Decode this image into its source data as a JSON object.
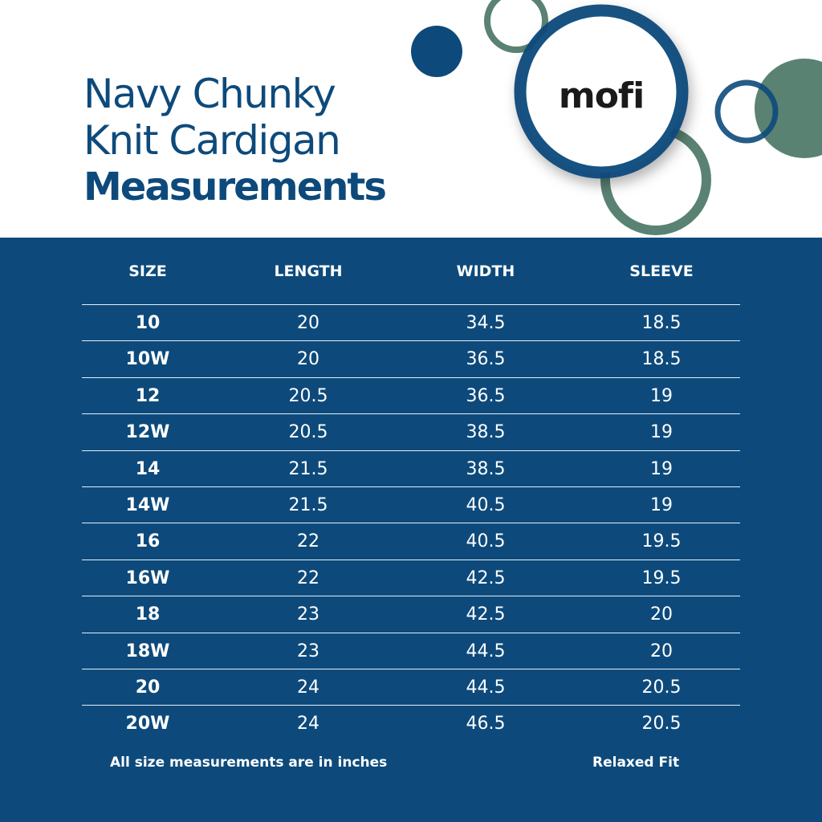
{
  "brand": {
    "logo_text": "mofi",
    "navy": "#0d4a7b",
    "green": "#5a8272"
  },
  "title": {
    "line1": "Navy Chunky",
    "line2": "Knit Cardigan",
    "line3": "Measurements"
  },
  "table": {
    "headers": [
      "SIZE",
      "LENGTH",
      "WIDTH",
      "SLEEVE"
    ],
    "rows": [
      [
        "10",
        "20",
        "34.5",
        "18.5"
      ],
      [
        "10W",
        "20",
        "36.5",
        "18.5"
      ],
      [
        "12",
        "20.5",
        "36.5",
        "19"
      ],
      [
        "12W",
        "20.5",
        "38.5",
        "19"
      ],
      [
        "14",
        "21.5",
        "38.5",
        "19"
      ],
      [
        "14W",
        "21.5",
        "40.5",
        "19"
      ],
      [
        "16",
        "22",
        "40.5",
        "19.5"
      ],
      [
        "16W",
        "22",
        "42.5",
        "19.5"
      ],
      [
        "18",
        "23",
        "42.5",
        "20"
      ],
      [
        "18W",
        "23",
        "44.5",
        "20"
      ],
      [
        "20",
        "24",
        "44.5",
        "20.5"
      ],
      [
        "20W",
        "24",
        "46.5",
        "20.5"
      ]
    ]
  },
  "footer": {
    "note": "All size measurements are in inches",
    "fit": "Relaxed Fit"
  }
}
